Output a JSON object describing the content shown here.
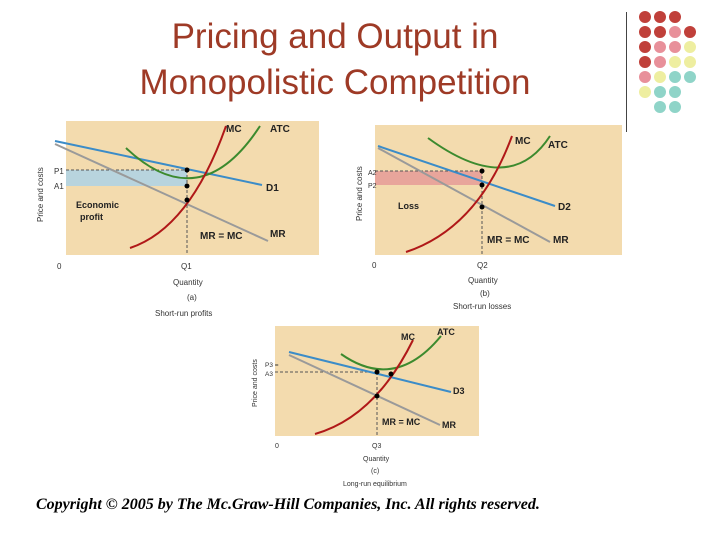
{
  "title": {
    "line1": "Pricing and Output in",
    "line2": "Monopolistic Competition"
  },
  "copyright": "Copyright © 2005 by The Mc.Graw-Hill Companies, Inc. All rights reserved.",
  "colors": {
    "title": "#9e3a26",
    "fill": "#f3dbae",
    "mc": "#b01818",
    "atc": "#3c8a2e",
    "demand": "#3b8cc8",
    "mr": "#9a9a9a",
    "profit": "#b8d4de",
    "loss": "#e8a59b",
    "dot_red": "#c0403a",
    "dot_pink": "#e8909a",
    "dot_yellow": "#eeeea0",
    "dot_teal": "#8fd4c8"
  },
  "panels": [
    {
      "y_axis": "Price and costs",
      "p_label_top": "P1",
      "p_label_bottom": "A1",
      "q_label": "Q1",
      "origin": "0",
      "x_axis": "Quantity",
      "letter": "(a)",
      "caption": "Short-run profits",
      "mc": "MC",
      "atc": "ATC",
      "demand": "D1",
      "mr": "MR",
      "equality": "MR = MC",
      "region": "Economic profit"
    },
    {
      "y_axis": "Price and costs",
      "p_label_top": "A2",
      "p_label_bottom": "P2",
      "q_label": "Q2",
      "origin": "0",
      "x_axis": "Quantity",
      "letter": "(b)",
      "caption": "Short-run losses",
      "mc": "MC",
      "atc": "ATC",
      "demand": "D2",
      "mr": "MR",
      "equality": "MR = MC",
      "region": "Loss"
    },
    {
      "y_axis": "Price and costs",
      "p_label_top": "P3 =",
      "p_label_bottom": "A3",
      "q_label": "Q3",
      "origin": "0",
      "x_axis": "Quantity",
      "letter": "(c)",
      "caption": "Long-run equilibrium",
      "mc": "MC",
      "atc": "ATC",
      "demand": "D3",
      "mr": "MR",
      "equality": "MR = MC",
      "region": ""
    }
  ]
}
